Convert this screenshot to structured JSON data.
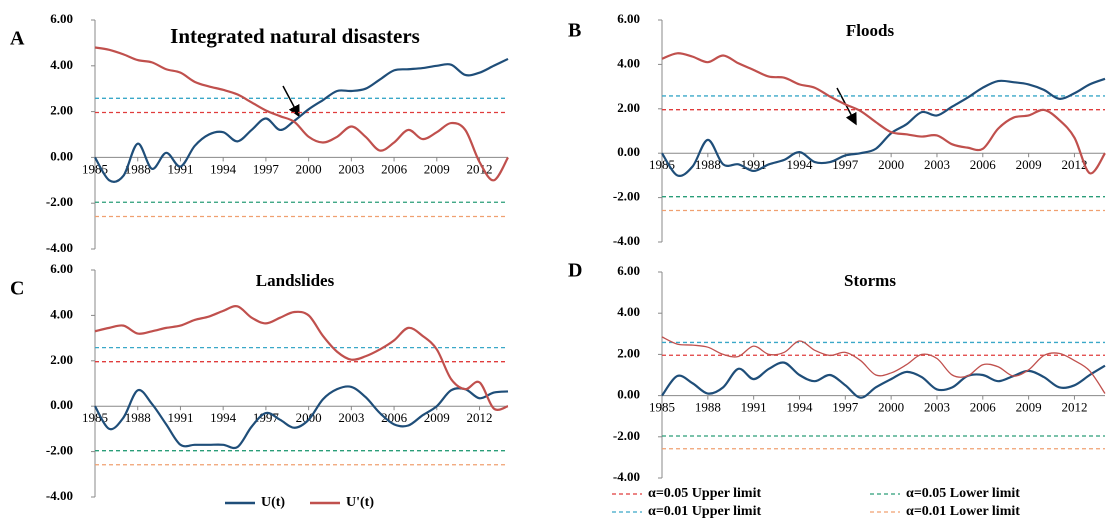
{
  "series_legend": [
    {
      "name": "U(t)",
      "color": "#1f4e79"
    },
    {
      "name": "U'(t)",
      "color": "#c0504d"
    }
  ],
  "reference_lines": [
    {
      "name": "α=0.05 Upper limit",
      "value": 1.96,
      "color": "#e03c3c"
    },
    {
      "name": "α=0.05 Lower limit",
      "value": -1.96,
      "color": "#2a9d78"
    },
    {
      "name": "α=0.01 Upper limit",
      "value": 2.58,
      "color": "#3aa8c8"
    },
    {
      "name": "α=0.01 Lower limit",
      "value": -2.58,
      "color": "#f0a070"
    }
  ],
  "chart_data": [
    {
      "type": "line",
      "label": "A",
      "title": "Integrated natural disasters",
      "x": [
        1985,
        1986,
        1987,
        1988,
        1989,
        1990,
        1991,
        1992,
        1993,
        1994,
        1995,
        1996,
        1997,
        1998,
        1999,
        2000,
        2001,
        2002,
        2003,
        2004,
        2005,
        2006,
        2007,
        2008,
        2009,
        2010,
        2011,
        2012,
        2013,
        2014
      ],
      "xlim": [
        1985,
        2014
      ],
      "xticks": [
        1985,
        1988,
        1991,
        1994,
        1997,
        2000,
        2003,
        2006,
        2009,
        2012
      ],
      "ylim": [
        -4,
        6
      ],
      "yticks": [
        {
          "value": -4,
          "label": "-4.00"
        },
        {
          "value": -2,
          "label": "-2.00"
        },
        {
          "value": 0,
          "label": "0.00"
        },
        {
          "value": 2,
          "label": "2.00"
        },
        {
          "value": 4,
          "label": "4.00"
        },
        {
          "value": 6,
          "label": "6.00"
        }
      ],
      "series": [
        {
          "values": [
            0,
            -1.0,
            -0.8,
            0.6,
            -0.5,
            0.2,
            -0.4,
            0.5,
            1.0,
            1.1,
            0.7,
            1.2,
            1.7,
            1.2,
            1.6,
            2.1,
            2.5,
            2.9,
            2.9,
            3.0,
            3.4,
            3.8,
            3.85,
            3.9,
            4.0,
            4.05,
            3.6,
            3.7,
            4.0,
            4.3
          ]
        },
        {
          "values": [
            4.8,
            4.7,
            4.5,
            4.25,
            4.15,
            3.85,
            3.7,
            3.3,
            3.1,
            2.95,
            2.75,
            2.4,
            2.05,
            1.8,
            1.55,
            0.9,
            0.65,
            0.9,
            1.35,
            0.9,
            0.3,
            0.65,
            1.2,
            0.8,
            1.1,
            1.5,
            1.2,
            -0.2,
            -1.0,
            0.0
          ]
        }
      ]
    },
    {
      "type": "line",
      "label": "B",
      "title": "Floods",
      "x": [
        1985,
        1986,
        1987,
        1988,
        1989,
        1990,
        1991,
        1992,
        1993,
        1994,
        1995,
        1996,
        1997,
        1998,
        1999,
        2000,
        2001,
        2002,
        2003,
        2004,
        2005,
        2006,
        2007,
        2008,
        2009,
        2010,
        2011,
        2012,
        2013,
        2014
      ],
      "xlim": [
        1985,
        2014
      ],
      "xticks": [
        1985,
        1988,
        1991,
        1994,
        1997,
        2000,
        2003,
        2006,
        2009,
        2012
      ],
      "ylim": [
        -4,
        6
      ],
      "yticks": [
        {
          "value": -4,
          "label": "-4.00"
        },
        {
          "value": -2,
          "label": "-2.00"
        },
        {
          "value": 0,
          "label": "0.00"
        },
        {
          "value": 2,
          "label": "2.00"
        },
        {
          "value": 4,
          "label": "4.00"
        },
        {
          "value": 6,
          "label": "6.00"
        }
      ],
      "series": [
        {
          "values": [
            0,
            -1.0,
            -0.6,
            0.6,
            -0.5,
            -0.5,
            -0.8,
            -0.5,
            -0.3,
            0.05,
            -0.4,
            -0.4,
            -0.1,
            0.0,
            0.2,
            0.9,
            1.3,
            1.85,
            1.7,
            2.1,
            2.5,
            2.95,
            3.25,
            3.2,
            3.1,
            2.85,
            2.45,
            2.7,
            3.1,
            3.35
          ]
        },
        {
          "values": [
            4.25,
            4.5,
            4.35,
            4.1,
            4.4,
            4.05,
            3.75,
            3.45,
            3.4,
            3.1,
            2.95,
            2.55,
            2.2,
            1.9,
            1.4,
            0.95,
            0.85,
            0.75,
            0.8,
            0.4,
            0.25,
            0.2,
            1.1,
            1.6,
            1.7,
            1.95,
            1.5,
            0.7,
            -0.9,
            0.0
          ]
        }
      ]
    },
    {
      "type": "line",
      "label": "C",
      "title": "Landslides",
      "x": [
        1985,
        1986,
        1987,
        1988,
        1989,
        1990,
        1991,
        1992,
        1993,
        1994,
        1995,
        1996,
        1997,
        1998,
        1999,
        2000,
        2001,
        2002,
        2003,
        2004,
        2005,
        2006,
        2007,
        2008,
        2009,
        2010,
        2011,
        2012,
        2013,
        2014
      ],
      "xlim": [
        1985,
        2014
      ],
      "xticks": [
        1985,
        1988,
        1991,
        1994,
        1997,
        2000,
        2003,
        2006,
        2009,
        2012
      ],
      "ylim": [
        -4,
        6
      ],
      "yticks": [
        {
          "value": -4,
          "label": "-4.00"
        },
        {
          "value": -2,
          "label": "-2.00"
        },
        {
          "value": 0,
          "label": "0.00"
        },
        {
          "value": 2,
          "label": "2.00"
        },
        {
          "value": 4,
          "label": "4.00"
        },
        {
          "value": 6,
          "label": "6.00"
        }
      ],
      "series": [
        {
          "values": [
            0,
            -1.0,
            -0.5,
            0.7,
            0.1,
            -0.8,
            -1.7,
            -1.7,
            -1.7,
            -1.7,
            -1.8,
            -0.9,
            -0.3,
            -0.6,
            -0.95,
            -0.6,
            0.3,
            0.75,
            0.85,
            0.4,
            -0.3,
            -0.8,
            -0.85,
            -0.4,
            0.0,
            0.7,
            0.75,
            0.35,
            0.6,
            0.65
          ]
        },
        {
          "values": [
            3.3,
            3.45,
            3.55,
            3.2,
            3.3,
            3.45,
            3.55,
            3.8,
            3.95,
            4.2,
            4.4,
            3.9,
            3.65,
            3.9,
            4.15,
            4.0,
            3.1,
            2.4,
            2.05,
            2.2,
            2.5,
            2.9,
            3.45,
            3.1,
            2.5,
            1.2,
            0.75,
            1.05,
            -0.1,
            0.0
          ]
        }
      ]
    },
    {
      "type": "line",
      "label": "D",
      "title": "Storms",
      "x": [
        1985,
        1986,
        1987,
        1988,
        1989,
        1990,
        1991,
        1992,
        1993,
        1994,
        1995,
        1996,
        1997,
        1998,
        1999,
        2000,
        2001,
        2002,
        2003,
        2004,
        2005,
        2006,
        2007,
        2008,
        2009,
        2010,
        2011,
        2012,
        2013,
        2014
      ],
      "xlim": [
        1985,
        2014
      ],
      "xticks": [
        1985,
        1988,
        1991,
        1994,
        1997,
        2000,
        2003,
        2006,
        2009,
        2012
      ],
      "ylim": [
        -4,
        6
      ],
      "yticks": [
        {
          "value": -4,
          "label": "-4.00"
        },
        {
          "value": -2,
          "label": "-2.00"
        },
        {
          "value": 0,
          "label": "0.00"
        },
        {
          "value": 2,
          "label": "2.00"
        },
        {
          "value": 4,
          "label": "4.00"
        },
        {
          "value": 6,
          "label": "6.00"
        }
      ],
      "series": [
        {
          "values": [
            0,
            0.95,
            0.6,
            0.1,
            0.4,
            1.3,
            0.8,
            1.3,
            1.6,
            1.0,
            0.7,
            1.0,
            0.5,
            -0.1,
            0.4,
            0.8,
            1.15,
            0.9,
            0.3,
            0.4,
            0.95,
            1.0,
            0.7,
            0.95,
            1.2,
            0.9,
            0.4,
            0.5,
            1.0,
            1.45
          ]
        },
        {
          "values": [
            2.85,
            2.5,
            2.45,
            2.35,
            2.0,
            1.9,
            2.4,
            2.0,
            2.1,
            2.65,
            2.2,
            1.95,
            2.1,
            1.7,
            1.0,
            1.1,
            1.5,
            2.0,
            1.8,
            1.0,
            0.95,
            1.5,
            1.4,
            0.95,
            1.25,
            1.95,
            2.05,
            1.7,
            1.2,
            0.1
          ]
        }
      ]
    }
  ]
}
